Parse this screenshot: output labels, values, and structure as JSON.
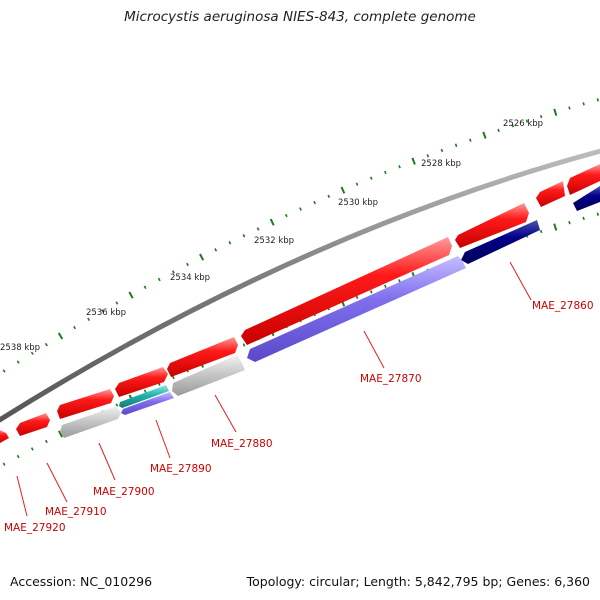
{
  "title": "Microcystis aeruginosa NIES-843, complete genome",
  "accession_text": "Accession: NC_010296",
  "summary_text": "Topology: circular; Length: 5,842,795 bp; Genes: 6,360",
  "colors": {
    "backbone": "#7a7a7a",
    "forward_gene": "#ee0000",
    "reverse_gene": "#7b68ee",
    "dark_reverse_gene": "#000080",
    "grey_gene": "#bbbbbb",
    "teal_gene": "#20b2aa",
    "ticks": "#1f7a1f",
    "label": "#cc0000"
  },
  "scale": {
    "unit": "kbp",
    "labels": [
      "2526 kbp",
      "2528 kbp",
      "2530 kbp",
      "2532 kbp",
      "2534 kbp",
      "2536 kbp",
      "2538 kbp"
    ]
  },
  "gene_labels": [
    "MAE_27860",
    "MAE_27870",
    "MAE_27880",
    "MAE_27890",
    "MAE_27900",
    "MAE_27910",
    "MAE_27920"
  ]
}
